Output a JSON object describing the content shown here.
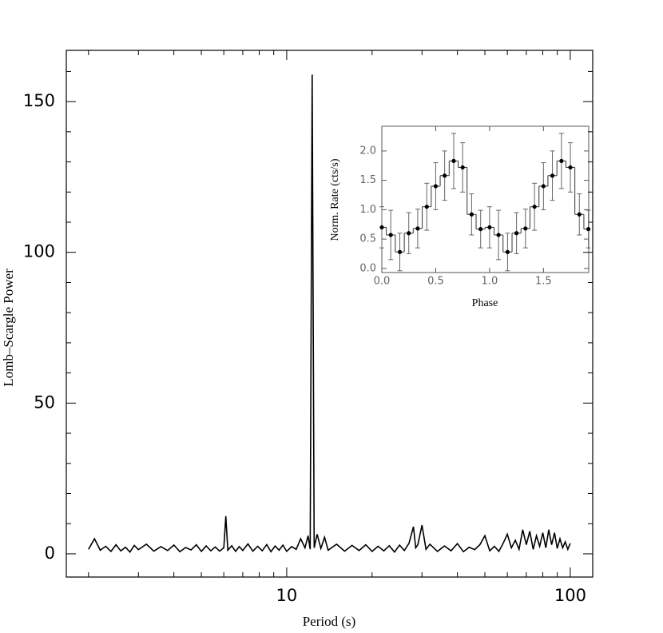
{
  "chart_data": [
    {
      "type": "line",
      "xlabel": "Period (s)",
      "ylabel": "Lomb–Scargle Power",
      "color": "#000000",
      "xscale": "log",
      "xlim": [
        1.67,
        120
      ],
      "ylim": [
        -7.7,
        167
      ],
      "xticks": [
        10,
        100
      ],
      "yticks": [
        0,
        50,
        100,
        150
      ],
      "xminor_ticks": [
        2,
        3,
        4,
        5,
        6,
        7,
        8,
        9,
        20,
        30,
        40,
        50,
        60,
        70,
        80,
        90
      ],
      "yminor_ticks": [
        10,
        20,
        30,
        40,
        60,
        70,
        80,
        90,
        110,
        120,
        130,
        140,
        160
      ],
      "x": [
        2.0,
        2.1,
        2.2,
        2.3,
        2.4,
        2.5,
        2.6,
        2.7,
        2.8,
        2.9,
        3.0,
        3.2,
        3.4,
        3.6,
        3.8,
        4.0,
        4.2,
        4.4,
        4.6,
        4.8,
        5.0,
        5.2,
        5.4,
        5.6,
        5.8,
        6.0,
        6.1,
        6.2,
        6.4,
        6.6,
        6.8,
        7.0,
        7.3,
        7.6,
        7.9,
        8.2,
        8.5,
        8.8,
        9.1,
        9.4,
        9.7,
        10.0,
        10.4,
        10.8,
        11.2,
        11.6,
        11.9,
        12.1,
        12.3,
        12.5,
        12.8,
        13.2,
        13.6,
        14,
        15,
        16,
        17,
        18,
        19,
        20,
        21,
        22,
        23,
        24,
        25,
        26,
        27,
        28,
        28.5,
        29,
        30,
        31,
        32,
        34,
        36,
        38,
        40,
        42,
        44,
        46,
        48,
        50,
        52,
        54,
        56,
        58,
        60,
        62,
        64,
        66,
        68,
        70,
        72,
        74,
        76,
        78,
        80,
        82,
        84,
        86,
        88,
        90,
        92,
        94,
        96,
        98,
        100
      ],
      "values": [
        1.5,
        5.0,
        1.2,
        2.5,
        0.8,
        3.0,
        1.0,
        2.2,
        0.6,
        2.8,
        1.4,
        3.2,
        0.9,
        2.4,
        1.1,
        2.9,
        0.7,
        2.1,
        1.3,
        3.0,
        0.8,
        2.6,
        1.0,
        2.3,
        0.9,
        2.0,
        12.5,
        1.2,
        2.7,
        0.8,
        2.4,
        1.1,
        3.3,
        0.9,
        2.5,
        1.0,
        3.1,
        0.7,
        2.6,
        1.2,
        2.9,
        0.8,
        2.4,
        1.5,
        5.0,
        2.0,
        6.0,
        1.5,
        159,
        2.0,
        6.5,
        1.8,
        5.5,
        1.2,
        3.2,
        0.9,
        2.8,
        1.1,
        3.0,
        0.8,
        2.5,
        1.0,
        2.7,
        0.6,
        2.9,
        1.1,
        3.5,
        9.0,
        2.0,
        3.0,
        9.5,
        1.5,
        3.2,
        0.8,
        2.6,
        1.0,
        3.4,
        0.7,
        2.2,
        1.4,
        3.0,
        6.0,
        1.0,
        2.5,
        0.8,
        3.5,
        6.5,
        2.0,
        4.5,
        1.5,
        8.0,
        3.0,
        7.5,
        1.5,
        6.0,
        2.5,
        7.0,
        2.0,
        8.0,
        3.0,
        7.0,
        1.8,
        5.0,
        2.0,
        4.0,
        1.5,
        3.5
      ]
    },
    {
      "type": "step",
      "xlabel": "Phase",
      "ylabel": "Norm. Rate (cts/s)",
      "color": "#000000",
      "xlim": [
        0,
        1.92
      ],
      "ylim": [
        -0.07,
        2.42
      ],
      "xticks": [
        {
          "value": 0,
          "label": "0.0"
        },
        {
          "value": 0.5,
          "label": "0.5"
        },
        {
          "value": 1,
          "label": "1.0"
        },
        {
          "value": 1.5,
          "label": "1.5"
        }
      ],
      "yticks": [
        {
          "value": 0,
          "label": "0.0"
        },
        {
          "value": 0.5,
          "label": "0.5"
        },
        {
          "value": 1,
          "label": "1.0"
        },
        {
          "value": 1.5,
          "label": "1.5"
        },
        {
          "value": 2,
          "label": "2.0"
        }
      ],
      "x": [
        0,
        0.083,
        0.167,
        0.25,
        0.333,
        0.417,
        0.5,
        0.583,
        0.667,
        0.75,
        0.833,
        0.917,
        1.0,
        1.083,
        1.167,
        1.25,
        1.333,
        1.417,
        1.5,
        1.583,
        1.667,
        1.75,
        1.833,
        1.917
      ],
      "values": [
        0.7,
        0.57,
        0.28,
        0.6,
        0.68,
        1.05,
        1.4,
        1.58,
        1.83,
        1.72,
        0.92,
        0.67,
        0.7,
        0.57,
        0.28,
        0.6,
        0.68,
        1.05,
        1.4,
        1.58,
        1.83,
        1.72,
        0.92,
        0.67
      ],
      "errors": [
        0.35,
        0.42,
        0.32,
        0.35,
        0.33,
        0.4,
        0.4,
        0.42,
        0.47,
        0.42,
        0.35,
        0.32,
        0.35,
        0.42,
        0.32,
        0.35,
        0.33,
        0.4,
        0.4,
        0.42,
        0.47,
        0.42,
        0.35,
        0.32
      ]
    }
  ]
}
